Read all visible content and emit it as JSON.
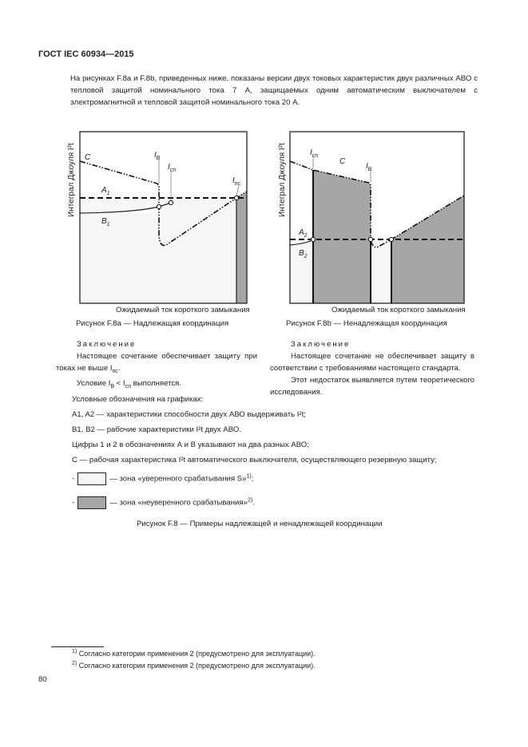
{
  "header": "ГОСТ IEC 60934—2015",
  "intro": "На рисунках F.8a и F.8b, приведенных ниже, показаны версии двух токовых характеристик двух различных АВО с тепловой защитой номинального тока 7 А, защищаемых одним автоматическим выключателем с электромагнитной и тепловой защитой номинального тока 20 А.",
  "fig_a": {
    "ylabel": "Интеграл Джоуля I²t",
    "xlabel": "Ожидаемый ток короткого замыкания",
    "caption": "Рисунок F.8a — Надлежащая координация",
    "labels": {
      "C": "C",
      "A": "A",
      "A_sub": "1",
      "B": "B",
      "B_sub": "1",
      "IB": "I",
      "IB_sub": "В",
      "Icn": "I",
      "Icn_sub": "сп",
      "Inc": "I",
      "Inc_sub": "пс"
    }
  },
  "fig_b": {
    "ylabel": "Интеграл Джоуля I²t",
    "xlabel": "Ожидаемый ток короткого замыкания",
    "caption": "Рисунок F.8b — Ненадлежащая координация",
    "labels": {
      "C": "C",
      "A": "A",
      "A_sub": "2",
      "B": "B",
      "B_sub": "2",
      "IB": "I",
      "IB_sub": "В",
      "Icn": "I",
      "Icn_sub": "сп"
    }
  },
  "concl_a": {
    "title": "Заключение",
    "line1": "Настоящее сочетание обеспечивает защиту при токах не выше I",
    "line1_sub": "пс",
    "cond_pre": "Условие I",
    "cond_sub1": "В",
    "cond_mid": " < I",
    "cond_sub2": "сп",
    "cond_post": " выполняется."
  },
  "concl_b": {
    "title": "Заключение",
    "p1": "Настоящее сочетание не обеспечивает защиту в соответствии с требованиями настоящего стандарта.",
    "p2": "Этот недостаток выявляется путем теоретического исследования."
  },
  "legend": {
    "title": "Условные обозначения на графиках:",
    "a": "A1, A2 — характеристики способности двух АВО выдерживать I²t;",
    "b": "B1, B2 — рабочие характеристики I²t двух АВО.",
    "digits": "Цифры 1 и 2 в обозначениях А и В указывают на два разных АВО;",
    "c": "C — рабочая характеристика I²t автоматического выключателя, осуществляющего резервную защиту;",
    "zone1": "— зона «уверенного срабатывания S»",
    "zone1_note": "1)",
    "zone2": "— зона «неуверенного срабатывания»",
    "zone2_note": "2)",
    "dash": "-"
  },
  "colors": {
    "light_zone": "#f7f7f7",
    "dark_zone": "#a6a6a6"
  },
  "figure_caption": "Рисунок F.8 — Примеры надлежащей и ненадлежащей координации",
  "footnotes": [
    {
      "mark": "1)",
      "text": "Согласно категории применения 2 (предусмотрено для эксплуатации)."
    },
    {
      "mark": "2)",
      "text": "Согласно категории применения 2 (предусмотрено для эксплуатации)."
    }
  ],
  "page_number": "80"
}
